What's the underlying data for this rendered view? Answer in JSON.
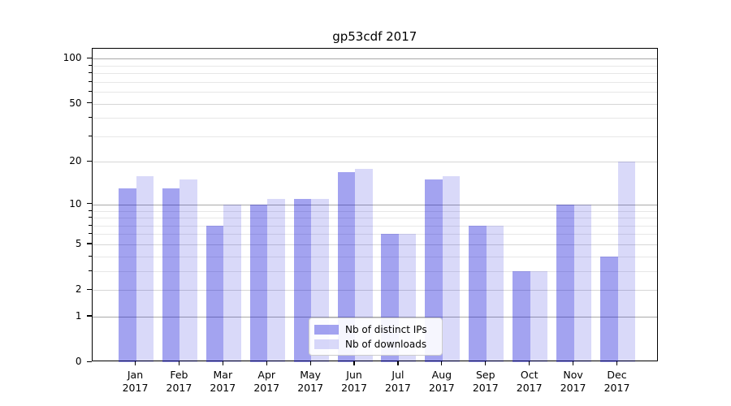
{
  "chart_data": {
    "type": "bar",
    "title": "gp53cdf 2017",
    "categories": [
      "Jan",
      "Feb",
      "Mar",
      "Apr",
      "May",
      "Jun",
      "Jul",
      "Aug",
      "Sep",
      "Oct",
      "Nov",
      "Dec"
    ],
    "category_year_label": "2017",
    "series": [
      {
        "name": "Nb of distinct IPs",
        "color_hex": "#a3a3f0",
        "fill": "rgba(0,0,213,0.36)",
        "values": [
          13,
          13,
          7,
          10,
          11,
          17,
          6,
          15,
          7,
          3,
          10,
          4
        ]
      },
      {
        "name": "Nb of downloads",
        "color_hex": "#d9d9f8",
        "fill": "rgba(0,0,213,0.15)",
        "values": [
          16,
          15,
          10,
          11,
          11,
          18,
          6,
          16,
          7,
          3,
          10,
          20
        ]
      }
    ],
    "xlabel": "",
    "ylabel": "",
    "y_axis": {
      "scale": "log(1+x)",
      "tick_values": [
        0,
        1,
        2,
        5,
        10,
        20,
        50,
        100
      ],
      "tick_labels": [
        "0",
        "1",
        "2",
        "5",
        "10",
        "20",
        "50",
        "100"
      ],
      "range": [
        0,
        116
      ]
    },
    "grid": {
      "on": true,
      "major_lines": [
        1,
        10,
        100
      ],
      "labeled_light_lines": [
        2,
        5,
        20,
        50
      ],
      "minor_lines": [
        3,
        4,
        6,
        7,
        8,
        9,
        30,
        40,
        60,
        70,
        80,
        90
      ]
    },
    "legend": {
      "position": "lower center",
      "entries": [
        "Nb of distinct IPs",
        "Nb of downloads"
      ]
    }
  }
}
